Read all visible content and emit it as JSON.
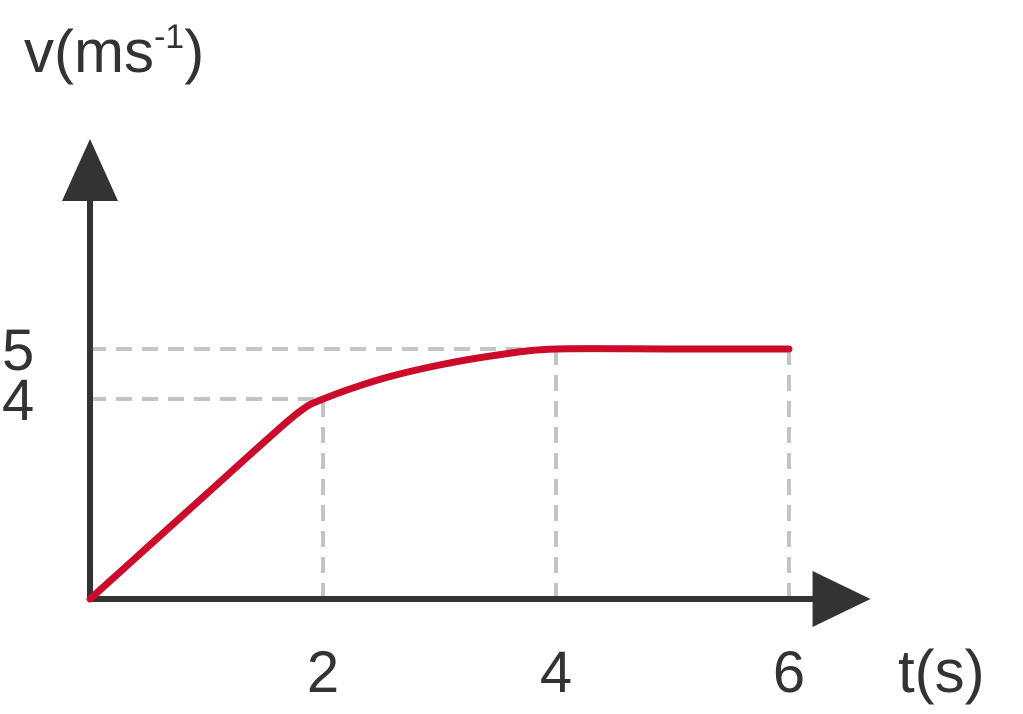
{
  "chart_data": {
    "type": "line",
    "xlabel": "t(s)",
    "ylabel_base": "v(ms",
    "ylabel_sup": "-1",
    "ylabel_close": ")",
    "xlim": [
      0,
      6.7
    ],
    "ylim": [
      0,
      9.2
    ],
    "x_ticks": [
      {
        "value": 2,
        "label": "2"
      },
      {
        "value": 4,
        "label": "4"
      },
      {
        "value": 6,
        "label": "6"
      }
    ],
    "y_ticks": [
      {
        "value": 4,
        "label": "4"
      },
      {
        "value": 5,
        "label": "5"
      }
    ],
    "series": [
      {
        "color": "#cc0a2a",
        "points": [
          {
            "x": 0,
            "y": 0
          },
          {
            "x": 0.5,
            "y": 1.05
          },
          {
            "x": 1.0,
            "y": 2.1
          },
          {
            "x": 1.5,
            "y": 3.15
          },
          {
            "x": 1.8,
            "y": 3.75
          },
          {
            "x": 2.0,
            "y": 4.0
          },
          {
            "x": 2.5,
            "y": 4.4
          },
          {
            "x": 3.0,
            "y": 4.68
          },
          {
            "x": 3.5,
            "y": 4.88
          },
          {
            "x": 4.0,
            "y": 5.0
          },
          {
            "x": 5.0,
            "y": 5.0
          },
          {
            "x": 6.0,
            "y": 5.0
          }
        ]
      }
    ],
    "guides": [
      {
        "x": 2,
        "y": 4
      },
      {
        "x": 4,
        "y": 5
      },
      {
        "x": 6,
        "y": 5
      }
    ],
    "grid": false,
    "legend": "none",
    "colors": {
      "axis": "#333333",
      "guide": "#c4c4c4",
      "series": "#cc0a2a"
    }
  }
}
